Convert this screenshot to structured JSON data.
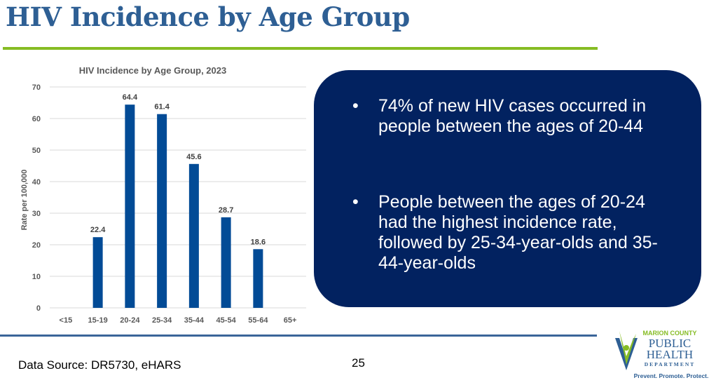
{
  "slide_title": "HIV Incidence by Age Group",
  "chart_data": {
    "type": "bar",
    "title": "HIV Incidence by Age Group, 2023",
    "xlabel": "",
    "ylabel": "Rate per 100,000",
    "categories": [
      "<15",
      "15-19",
      "20-24",
      "25-34",
      "35-44",
      "45-54",
      "55-64",
      "65+"
    ],
    "values": [
      null,
      22.4,
      64.4,
      61.4,
      45.6,
      28.7,
      18.6,
      null
    ],
    "data_labels": [
      "",
      "22.4",
      "64.4",
      "61.4",
      "45.6",
      "28.7",
      "18.6",
      ""
    ],
    "ylim": [
      0,
      70
    ],
    "yticks": [
      0,
      10,
      20,
      30,
      40,
      50,
      60,
      70
    ],
    "grid": true,
    "bar_color": "#024b96"
  },
  "bullets": [
    "74% of new HIV cases occurred in people between the ages of 20-44",
    "People between the ages of 20-24 had the highest incidence rate, followed by 25-34-year-olds and 35-44-year-olds"
  ],
  "bullet_symbol": "•",
  "footer": {
    "source": "Data Source: DR5730, eHARS",
    "page_number": "25"
  },
  "logo": {
    "line1": "MARION COUNTY",
    "line2": "PUBLIC",
    "line3": "HEALTH",
    "line4": "DEPARTMENT",
    "tagline": "Prevent. Promote. Protect."
  },
  "colors": {
    "title": "#2e5f94",
    "accent_green": "#86bc24",
    "box": "#022260",
    "bar": "#024b96"
  }
}
